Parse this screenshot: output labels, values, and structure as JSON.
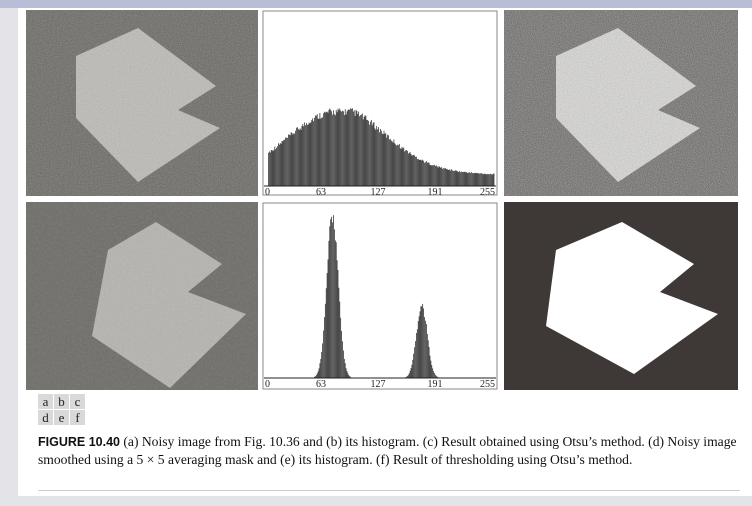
{
  "figure": {
    "panel_letters": [
      "a",
      "b",
      "c",
      "d",
      "e",
      "f"
    ],
    "caption_label": "FIGURE 10.40",
    "caption_text": " (a) Noisy image from Fig. 10.36 and (b) its histogram. (c) Result obtained using Otsu’s method. (d) Noisy image smoothed using a 5 × 5 averaging mask and (e) its histogram. (f) Result of thresholding using Otsu’s method."
  },
  "histograms": {
    "tick_labels": [
      "0",
      "63",
      "127",
      "191",
      "255"
    ],
    "b_shape": "broad",
    "e_shape": "bimodal"
  },
  "colors": {
    "noisy_bg": "#66655f",
    "noisy_fg": "#bcbbb6",
    "thresh_bg": "#3e3936",
    "thresh_fg": "#ffffff",
    "smooth_bg": "#6e6d68",
    "smooth_fg": "#b5b4af"
  }
}
